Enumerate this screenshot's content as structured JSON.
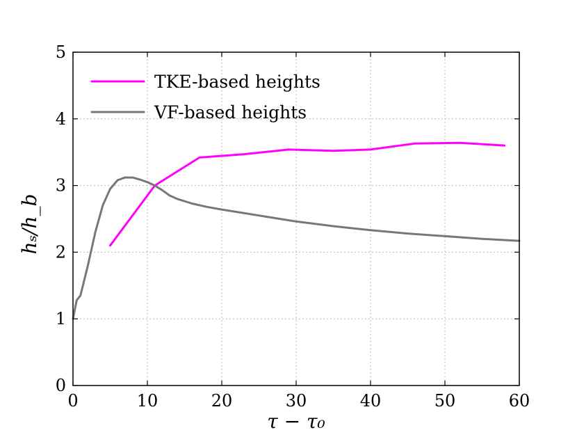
{
  "chart_data": {
    "type": "line",
    "title": "",
    "xlabel": "τ − τ₀",
    "ylabel": "hₛ/h_b",
    "xlim": [
      0,
      60
    ],
    "ylim": [
      0,
      5
    ],
    "xticks": [
      0,
      10,
      20,
      30,
      40,
      50,
      60
    ],
    "yticks": [
      0,
      1,
      2,
      3,
      4,
      5
    ],
    "xtick_labels": [
      "0",
      "10",
      "20",
      "30",
      "40",
      "50",
      "60"
    ],
    "ytick_labels": [
      "0",
      "1",
      "2",
      "3",
      "4",
      "5"
    ],
    "grid": true,
    "legend_position": "top-left",
    "series": [
      {
        "name": "TKE-based heights",
        "color": "#ff00ff",
        "x": [
          5,
          11,
          17,
          23,
          29,
          35,
          40,
          46,
          52,
          58
        ],
        "y": [
          2.1,
          3.0,
          3.42,
          3.47,
          3.54,
          3.52,
          3.54,
          3.63,
          3.64,
          3.6
        ]
      },
      {
        "name": "VF-based heights",
        "color": "#777777",
        "x": [
          0,
          0.5,
          1,
          2,
          3,
          4,
          5,
          6,
          7,
          8,
          9,
          10,
          11,
          12,
          13,
          14,
          16,
          18,
          20,
          25,
          30,
          35,
          40,
          45,
          50,
          55,
          60
        ],
        "y": [
          1.0,
          1.28,
          1.35,
          1.8,
          2.3,
          2.7,
          2.95,
          3.08,
          3.12,
          3.12,
          3.09,
          3.05,
          3.0,
          2.93,
          2.85,
          2.8,
          2.73,
          2.68,
          2.64,
          2.55,
          2.46,
          2.39,
          2.33,
          2.28,
          2.24,
          2.2,
          2.17
        ]
      }
    ]
  }
}
